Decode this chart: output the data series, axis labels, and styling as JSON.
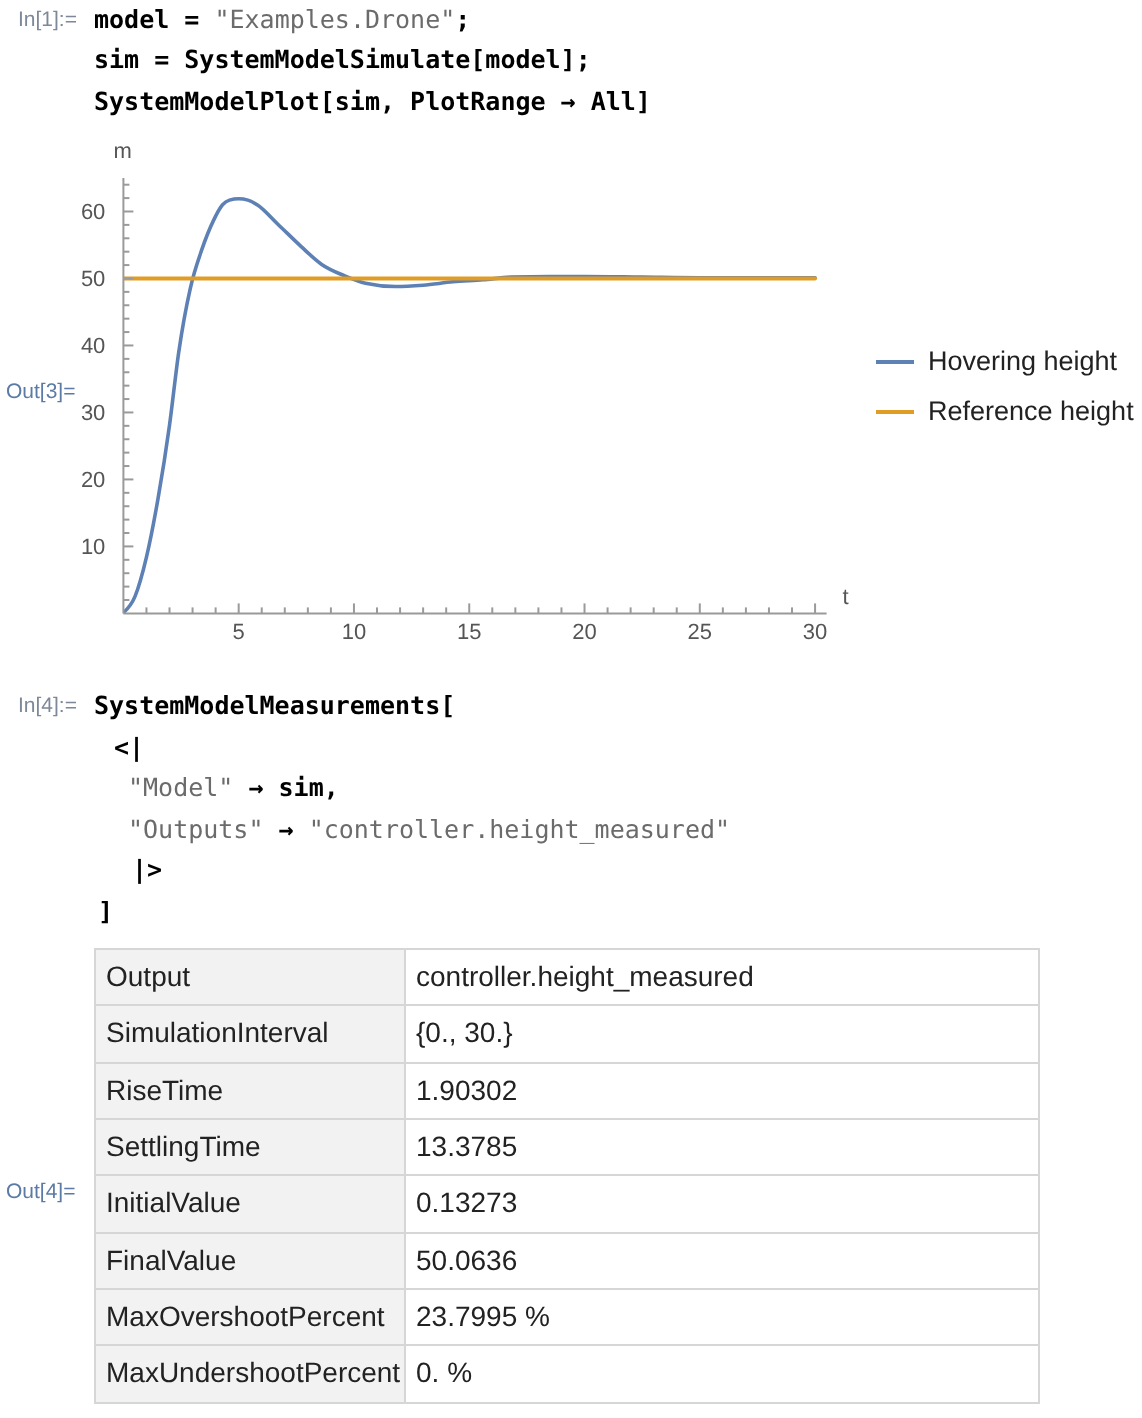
{
  "chart_data": [
    {
      "type": "line",
      "xlabel": "t",
      "ylabel": "m",
      "xlim": [
        0,
        30.5
      ],
      "ylim": [
        0,
        65
      ],
      "xticks": [
        {
          "value": 1,
          "label": null
        },
        {
          "value": 2,
          "label": null
        },
        {
          "value": 3,
          "label": null
        },
        {
          "value": 4,
          "label": null
        },
        5,
        {
          "value": 6,
          "label": null
        },
        {
          "value": 7,
          "label": null
        },
        {
          "value": 8,
          "label": null
        },
        {
          "value": 9,
          "label": null
        },
        10,
        {
          "value": 11,
          "label": null
        },
        {
          "value": 12,
          "label": null
        },
        {
          "value": 13,
          "label": null
        },
        {
          "value": 14,
          "label": null
        },
        15,
        {
          "value": 16,
          "label": null
        },
        {
          "value": 17,
          "label": null
        },
        {
          "value": 18,
          "label": null
        },
        {
          "value": 19,
          "label": null
        },
        20,
        {
          "value": 21,
          "label": null
        },
        {
          "value": 22,
          "label": null
        },
        {
          "value": 23,
          "label": null
        },
        {
          "value": 24,
          "label": null
        },
        25,
        {
          "value": 26,
          "label": null
        },
        {
          "value": 27,
          "label": null
        },
        {
          "value": 28,
          "label": null
        },
        {
          "value": 29,
          "label": null
        },
        30
      ],
      "yticks": [
        {
          "value": 2,
          "label": null
        },
        {
          "value": 4,
          "label": null
        },
        {
          "value": 6,
          "label": null
        },
        {
          "value": 8,
          "label": null
        },
        10,
        {
          "value": 12,
          "label": null
        },
        {
          "value": 14,
          "label": null
        },
        {
          "value": 16,
          "label": null
        },
        {
          "value": 18,
          "label": null
        },
        20,
        {
          "value": 22,
          "label": null
        },
        {
          "value": 24,
          "label": null
        },
        {
          "value": 26,
          "label": null
        },
        {
          "value": 28,
          "label": null
        },
        30,
        {
          "value": 32,
          "label": null
        },
        {
          "value": 34,
          "label": null
        },
        {
          "value": 36,
          "label": null
        },
        {
          "value": 38,
          "label": null
        },
        40,
        {
          "value": 42,
          "label": null
        },
        {
          "value": 44,
          "label": null
        },
        {
          "value": 46,
          "label": null
        },
        {
          "value": 48,
          "label": null
        },
        50,
        {
          "value": 52,
          "label": null
        },
        {
          "value": 54,
          "label": null
        },
        {
          "value": 56,
          "label": null
        },
        {
          "value": 58,
          "label": null
        },
        60,
        {
          "value": 62,
          "label": null
        },
        {
          "value": 64,
          "label": null
        }
      ],
      "legend": "right",
      "line_style": "solid",
      "annotations": [
        "In[1]:=",
        "model = \"Examples.Drone\";",
        "sim = SystemModelSimulate[model];",
        "SystemModelPlot[sim, PlotRange → All]",
        "Out[3]="
      ],
      "series": [
        {
          "name": "Hovering height",
          "color": "#5e81b5",
          "x": [
            0,
            0.5,
            1.0,
            1.5,
            2.0,
            2.4,
            2.9,
            3.4,
            3.9,
            4.3,
            4.6,
            5,
            5.4,
            5.8,
            6.7,
            7.7,
            8.6,
            9.6,
            10.5,
            11.8,
            13.0,
            14.3,
            15.6,
            16.8,
            18.5,
            20,
            22.5,
            25,
            27.5,
            30
          ],
          "values": [
            0.1,
            2.5,
            8.4,
            17.1,
            28.1,
            39.0,
            48.5,
            54.3,
            58.6,
            61.0,
            61.7,
            61.9,
            61.7,
            61.0,
            58.1,
            54.8,
            52.1,
            50.4,
            49.3,
            48.8,
            49.0,
            49.5,
            49.8,
            50.2,
            50.3,
            50.3,
            50.2,
            50.1,
            50.1,
            50.1
          ]
        },
        {
          "name": "Reference height",
          "color": "#e19c24",
          "x": [
            0,
            30
          ],
          "values": [
            50,
            50
          ]
        }
      ]
    },
    {
      "type": "other",
      "annotations": [
        "In[4]:=",
        "SystemModelMeasurements[",
        "<|",
        "\"Model\" → sim,",
        "\"Outputs\" → \"controller.height_measured\"",
        "|>",
        "]"
      ]
    },
    {
      "type": "other",
      "annotations": [
        "Out[4]=",
        "Output",
        "controller.height_measured",
        "SimulationInterval",
        "{0., 30.}",
        "RiseTime",
        "1.90302",
        "SettlingTime",
        "13.3785",
        "InitialValue",
        "0.13273",
        "FinalValue",
        "50.0636",
        "MaxOvershootPercent",
        "23.7995 %",
        "MaxUndershootPercent",
        "0. %"
      ]
    }
  ]
}
